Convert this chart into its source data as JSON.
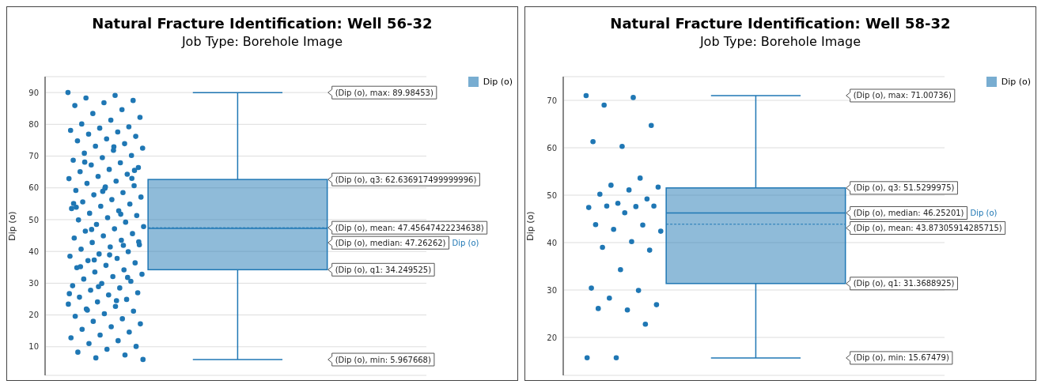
{
  "chart_data": [
    {
      "type": "box",
      "title": "Natural Fracture Identification: Well 56-32",
      "subtitle": "Job Type: Borehole Image",
      "ylabel": "Dip (o)",
      "categories": [
        null
      ],
      "ylim": [
        1,
        95
      ],
      "yticks": [
        10,
        20,
        30,
        40,
        50,
        60,
        70,
        80,
        90
      ],
      "grid": "y",
      "legend": "top right",
      "series": [
        {
          "name": "Dip (o)",
          "color": "#1f77b4",
          "boxes": [
            {
              "low": 5.967668,
              "q1": 34.249525,
              "median": 47.26262,
              "q3": 62.636917499999996,
              "high": 89.98453,
              "mean": 47.45647422234638
            }
          ]
        },
        {
          "type": "scatter",
          "color": "#1f77b4",
          "x": [
            null,
            null,
            null,
            null,
            null,
            null,
            null,
            null,
            null,
            null,
            null,
            null,
            null,
            null,
            null,
            null,
            null,
            null,
            null,
            null,
            null,
            null,
            null,
            null,
            null,
            null,
            null,
            null,
            null,
            null,
            null,
            null,
            null,
            null,
            null,
            null,
            null,
            null,
            null,
            null,
            null,
            null,
            null,
            null,
            null,
            null,
            null,
            null,
            null,
            null,
            null,
            null,
            null,
            null,
            null,
            null,
            null,
            null,
            null,
            null,
            null,
            null,
            null,
            null,
            null,
            null,
            null,
            null,
            null,
            null,
            null,
            null,
            null,
            null,
            null,
            null,
            null,
            null,
            null,
            null,
            null,
            null,
            null,
            null,
            null,
            null,
            null,
            null,
            null,
            null,
            null,
            null,
            null,
            null,
            null,
            null,
            null,
            null,
            null,
            null,
            null,
            null,
            null,
            null,
            null,
            null,
            null,
            null,
            null,
            null,
            null,
            null,
            null,
            null,
            null,
            null,
            null,
            null,
            null,
            null,
            null,
            null,
            null,
            null,
            null,
            null,
            null,
            null,
            null,
            null,
            null
          ],
          "values": [
            90,
            89.1,
            88.3,
            87.5,
            86.8,
            85.9,
            84.6,
            83.4,
            82.2,
            81.3,
            80.1,
            79.2,
            78.8,
            78.1,
            77.6,
            76.9,
            76.2,
            75.4,
            74.8,
            73.9,
            73.1,
            72.5,
            71.8,
            70.9,
            70.2,
            69.5,
            68.7,
            67.9,
            67.2,
            66.4,
            65.8,
            65.1,
            64.3,
            63.6,
            62.9,
            62.1,
            61.4,
            60.7,
            59.9,
            59.2,
            58.5,
            57.8,
            57.1,
            56.3,
            55.6,
            54.9,
            54.2,
            53.5,
            52.8,
            52,
            51.3,
            50.6,
            49.9,
            49.2,
            48.5,
            47.8,
            47.1,
            46.4,
            45.6,
            44.9,
            44.2,
            43.5,
            42.8,
            42.1,
            41.4,
            40.7,
            39.9,
            39.2,
            38.5,
            37.8,
            37.1,
            36.4,
            35.6,
            34.9,
            34.2,
            33.5,
            32.8,
            32.1,
            31.3,
            30.6,
            29.9,
            29.2,
            28.5,
            27.8,
            27,
            26.3,
            25.6,
            24.9,
            24.1,
            23.4,
            22.7,
            21.9,
            21.2,
            20.4,
            19.6,
            18.8,
            18,
            17.2,
            16.3,
            15.5,
            14.6,
            13.7,
            12.8,
            11.9,
            11,
            10.1,
            9.2,
            8.3,
            7.4,
            6.5,
            6,
            72.9,
            68.1,
            63,
            58.9,
            55.1,
            51.7,
            46.9,
            43,
            38.9,
            35.2,
            31.8,
            28.9,
            26.7,
            24.5,
            21.5,
            65.5,
            60.3,
            53.9,
            41.9,
            37.3
          ]
        }
      ],
      "annotations": [
        "(Dip (o), max: 89.98453)",
        "(Dip (o), q3: 62.636917499999996)",
        "(Dip (o), mean: 47.45647422234638)",
        "(Dip (o), median: 47.26262)",
        "(Dip (o), q1: 34.249525)",
        "(Dip (o), min: 5.967668)"
      ]
    },
    {
      "type": "box",
      "title": "Natural Fracture Identification: Well 58-32",
      "subtitle": "Job Type: Borehole Image",
      "ylabel": "Dip (o)",
      "categories": [
        null
      ],
      "ylim": [
        12,
        75
      ],
      "yticks": [
        20,
        30,
        40,
        50,
        60,
        70
      ],
      "grid": "y",
      "legend": "top right",
      "series": [
        {
          "name": "Dip (o)",
          "color": "#1f77b4",
          "boxes": [
            {
              "low": 15.67479,
              "q1": 31.3688925,
              "median": 46.25201,
              "q3": 51.5299975,
              "high": 71.00736,
              "mean": 43.87305914285715
            }
          ]
        },
        {
          "type": "scatter",
          "color": "#1f77b4",
          "x": [
            null,
            null,
            null,
            null,
            null,
            null,
            null,
            null,
            null,
            null,
            null,
            null,
            null,
            null,
            null,
            null,
            null,
            null,
            null,
            null,
            null,
            null,
            null,
            null,
            null,
            null,
            null,
            null,
            null,
            null,
            null,
            null,
            null,
            null,
            null
          ],
          "values": [
            71.0,
            70.6,
            69.0,
            64.7,
            60.3,
            61.3,
            53.6,
            52.1,
            51.7,
            51.1,
            50.2,
            49.2,
            48.3,
            47.4,
            47.6,
            47.7,
            47.7,
            46.3,
            43.8,
            43.7,
            42.8,
            42.4,
            40.2,
            39.0,
            38.4,
            34.3,
            30.4,
            29.9,
            28.3,
            26.9,
            25.8,
            26.1,
            22.8,
            15.7,
            15.7
          ]
        }
      ],
      "annotations": [
        "(Dip (o), max: 71.00736)",
        "(Dip (o), q3: 51.5299975)",
        "(Dip (o), median: 46.25201)",
        "(Dip (o), mean: 43.87305914285715)",
        "(Dip (o), q1: 31.3688925)",
        "(Dip (o), min: 15.67479)"
      ]
    }
  ]
}
